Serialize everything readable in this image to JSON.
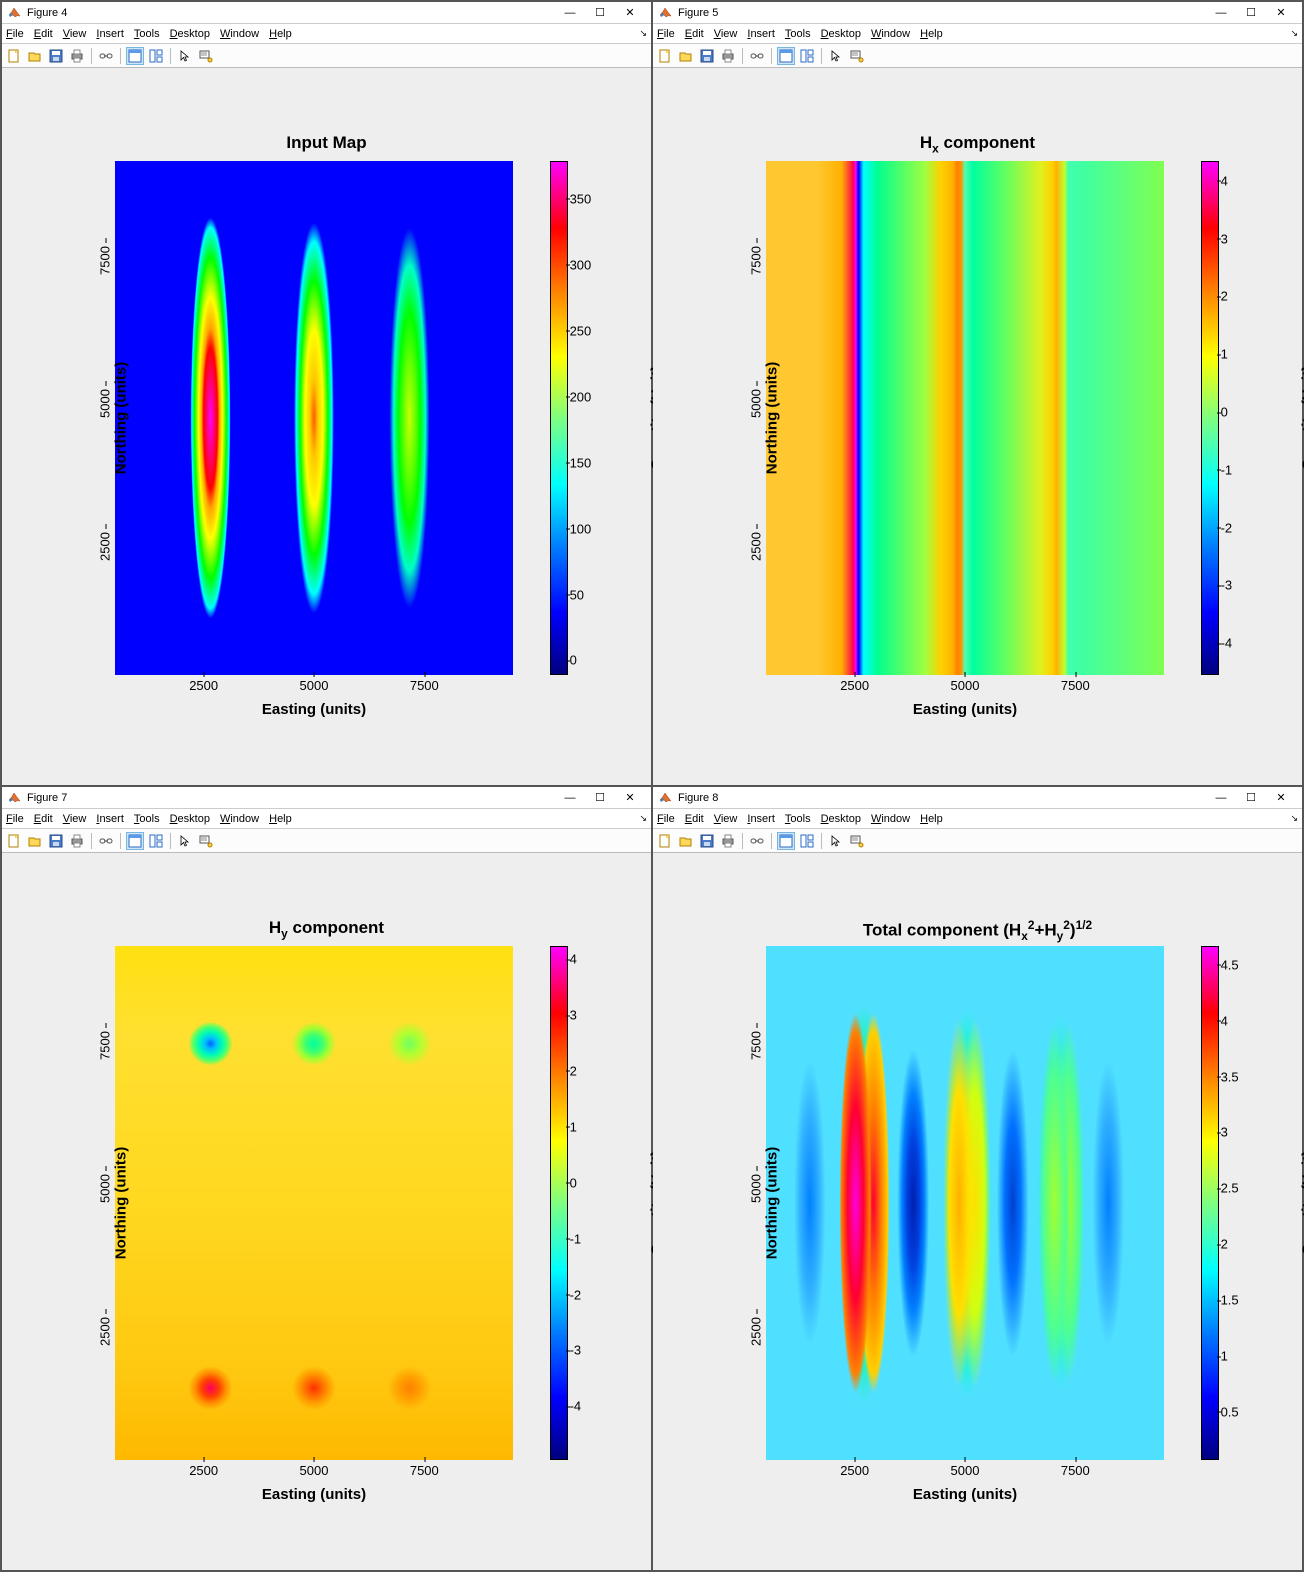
{
  "menus": [
    "File",
    "Edit",
    "View",
    "Insert",
    "Tools",
    "Desktop",
    "Window",
    "Help"
  ],
  "menu_underline_idx": [
    0,
    0,
    0,
    0,
    0,
    0,
    0,
    0
  ],
  "toolbar_icons": [
    "new",
    "open",
    "save",
    "print",
    "|",
    "link",
    "|",
    "dock",
    "tile",
    "|",
    "pointer",
    "datatip"
  ],
  "colormap_gradient": "linear-gradient(to top,#00007f 0%,#0000ff 12%,#007fff 25%,#00ffff 37%,#7fff7f 50%,#ffff00 62%,#ff7f00 75%,#ff0000 87%,#ff00ff 100%)",
  "axis": {
    "xlabel": "Easting (units)",
    "ylabel": "Northing (units)",
    "clabel": "Quantity (Unit)",
    "xticks": [
      2500,
      5000,
      7500
    ],
    "xlim": [
      500,
      9500
    ],
    "yticks": [
      2500,
      5000,
      7500
    ],
    "ylim": [
      500,
      9500
    ]
  },
  "panels": [
    {
      "id": "fig4",
      "title": "Figure 4",
      "plot_title": "Input Map",
      "cticks": [
        0,
        50,
        100,
        150,
        200,
        250,
        300,
        350
      ],
      "clim": [
        0,
        390
      ],
      "heat": "background:#0000ff; background-image:radial-gradient(ellipse 5% 39% at 24% 50%, rgba(255,0,255,1) 0%, rgba(255,0,0,1) 35%, rgba(255,165,0,1) 45%, rgba(255,255,0,1) 60%, rgba(0,255,0,1) 80%, rgba(0,255,255,1) 95%, rgba(0,0,255,0) 100%),radial-gradient(ellipse 5% 38% at 50% 50%, rgba(255,90,0,1) 0%, rgba(255,200,0,1) 20%, rgba(255,255,0,1) 45%, rgba(0,255,0,1) 70%, rgba(0,255,255,1) 90%, rgba(0,0,255,0) 100%),radial-gradient(ellipse 5% 37% at 74% 50%, rgba(200,255,0,1) 0%, rgba(100,255,0,1) 30%, rgba(0,255,0,1) 55%, rgba(0,255,200,1) 80%, rgba(0,0,255,0) 100%);"
    },
    {
      "id": "fig5",
      "title": "Figure 5",
      "plot_title": "H<sub>x</sub> component",
      "cticks": [
        -4,
        -3,
        -2,
        -1,
        0,
        1,
        2,
        3,
        4
      ],
      "clim": [
        -4.3,
        4.6
      ],
      "heat": "background:linear-gradient(to right, #ffc830 0%, #ffc830 13%, #ffb000 19%, #ff0050 22%, #ff00ff 22.5%, #0000ff 23.3%, #00ffff 24.5%, #00ff90 28%, #a0ff40 40%, #ffd000 44%, #ffb000 47%, #ff8000 48%, #ff9000 49%, #50ffb0 50%, #00ffa0 52%, #60ff60 60%, #e0f020 69%, #ffd000 72%, #ffb000 73%, #c0ff30 75%, #40ffb0 76%, #40ffa0 80%, #80ff50 100%); background-blend-mode:normal;"
    },
    {
      "id": "fig7",
      "title": "Figure 7",
      "plot_title": "H<sub>y</sub> component",
      "cticks": [
        -4,
        -3,
        -2,
        -1,
        0,
        1,
        2,
        3,
        4
      ],
      "clim": [
        -4.7,
        4.5
      ],
      "heat": "background:linear-gradient(to bottom, #ffe010 0%, #ffe030 17%, #ffd820 50%, #ffc810 83%, #ffb800 100%); background-image:radial-gradient(circle 22px at 24% 19%, #0060ff 0%, #00c0ff 25%, #00ffb0 55%, #60ff60 80%, rgba(255,224,30,0) 100%),radial-gradient(circle 22px at 50% 19%, #00ffa0 0%, #40ff70 40%, #a0ff30 70%, rgba(255,224,30,0) 100%),radial-gradient(circle 22px at 74% 19%, #70ff60 0%, #b0ff30 50%, rgba(255,224,30,0) 100%),radial-gradient(circle 22px at 24% 86%, #ff0060 0%, #ff4000 40%, #ff9000 70%, rgba(255,184,0,0) 100%),radial-gradient(circle 22px at 50% 86%, #ff3000 0%, #ff7000 40%, #ffa000 70%, rgba(255,184,0,0) 100%),radial-gradient(circle 22px at 74% 86%, #ff8000 0%, #ffa000 50%, rgba(255,184,0,0) 100%),linear-gradient(to bottom, #ffe010 0%, #ffe030 17%, #ffd820 50%, #ffc810 83%, #ffb800 100%);"
    },
    {
      "id": "fig8",
      "title": "Figure 8",
      "plot_title": "Total component (H<sub>x</sub><sup>2</sup>+H<sub>y</sub><sup>2</sup>)<sup>1/2</sup>",
      "cticks": [
        0.5,
        1,
        1.5,
        2,
        2.5,
        3,
        3.5,
        4,
        4.5
      ],
      "clim": [
        0.2,
        4.8
      ],
      "heat": "background:#50e0ff; background-image:radial-gradient(ellipse 4% 37% at 22.5% 50%, #ff00e0 0%, #ff0030 50%, #ff8000 90%, rgba(0,0,0,0) 100%),radial-gradient(ellipse 4% 37% at 27% 50%, #ff0030 0%, #ff8000 50%, #ffd000 90%, rgba(0,0,0,0) 100%),radial-gradient(ellipse 6% 39% at 24.5% 50%, rgba(255,200,0,0.9) 0%, rgba(200,255,0,0.8) 50%, rgba(0,255,150,0.6) 80%, rgba(0,0,0,0) 100%),radial-gradient(ellipse 4% 36% at 48.5% 50%, #ffb000 0%, #ffe000 60%, rgba(0,0,0,0) 100%),radial-gradient(ellipse 4% 36% at 52.5% 50%, #ffe000 0%, #d0ff10 60%, rgba(0,0,0,0) 100%),radial-gradient(ellipse 6% 38% at 50.5% 50%, rgba(200,255,0,0.8) 0%, rgba(100,255,100,0.7) 50%, rgba(0,255,200,0.5) 85%, rgba(0,0,0,0) 100%),radial-gradient(ellipse 4% 35% at 72.5% 50%, #a0ff30 0%, #50ff90 70%, rgba(0,0,0,0) 100%),radial-gradient(ellipse 4% 35% at 76% 50%, #a0ff30 0%, #50ff90 70%, rgba(0,0,0,0) 100%),radial-gradient(ellipse 6% 37% at 74% 50%, rgba(100,255,100,0.7) 0%, rgba(0,255,200,0.5) 70%, rgba(0,0,0,0) 100%),radial-gradient(ellipse 4% 30% at 37% 50%, #0020b0 0%, #0040e0 40%, #0080ff 70%, rgba(80,224,255,0) 100%),radial-gradient(ellipse 4% 30% at 62% 50%, #0040d0 0%, #0070ff 50%, rgba(80,224,255,0) 100%),radial-gradient(ellipse 4% 28% at 86% 50%, #0080ff 0%, #30b0ff 60%, rgba(80,224,255,0) 100%),radial-gradient(ellipse 4% 28% at 11% 50%, #0080ff 0%, #30b0ff 60%, rgba(80,224,255,0) 100%);"
    }
  ]
}
